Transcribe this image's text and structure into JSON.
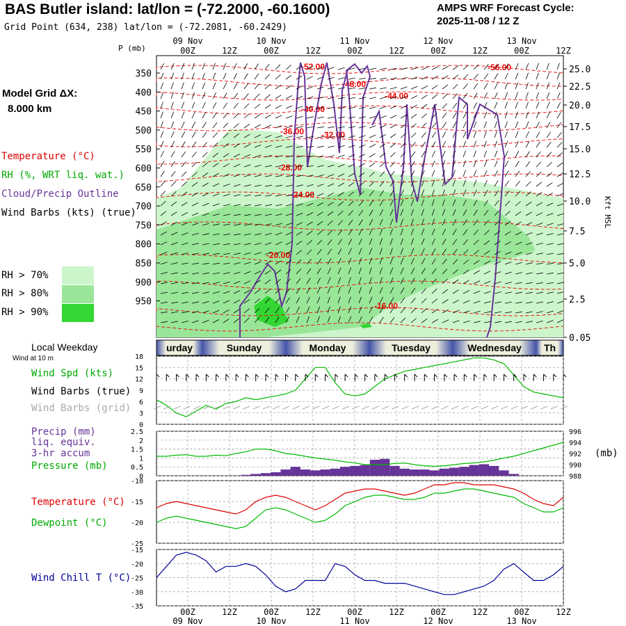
{
  "header": {
    "title": "BAS Butler island:  lat/lon = (-72.2000, -60.1600)",
    "grid_point": "Grid Point (634, 238) lat/lon = (-72.2081, -60.2429)",
    "cycle_line1": "AMPS WRF Forecast Cycle:",
    "cycle_line2": "2025-11-08 / 12  Z",
    "model_grid_label": "Model Grid ΔX:",
    "model_grid_value": "8.000 km"
  },
  "legend": {
    "temperature": "Temperature (°C)",
    "rh": "RH (%, WRT liq. wat.)",
    "cloud": "Cloud/Precip Outline",
    "wind_barbs": "Wind Barbs (kts) (true)",
    "rh70": "RH > 70%",
    "rh80": "RH > 80%",
    "rh90": "RH > 90%",
    "colors": {
      "rh70": "#ccf5cc",
      "rh80": "#99e699",
      "rh90": "#33d633",
      "temperature": "#ff0000",
      "cloud": "#663399",
      "wind": "#000000"
    }
  },
  "weekday": {
    "title": "Local Weekday",
    "days": [
      "urday",
      "Sunday",
      "Monday",
      "Tuesday",
      "Wednesday",
      "Th"
    ]
  },
  "panel_labels": {
    "wind_at": "Wind at 10 m",
    "wind_spd": "Wind Spd (kts)",
    "wind_barbs_true": "Wind Barbs (true)",
    "wind_barbs_grid": "Wind Barbs (grid)",
    "precip": "Precip (mm)",
    "liq": "liq. equiv.",
    "accum": "3-hr accum",
    "pressure": "Pressure (mb)",
    "pressure_unit": "(mb)",
    "temperature": "Temperature (°C)",
    "dewpoint": "Dewpoint (°C)",
    "wind_chill": "Wind Chill T (°C)",
    "p_axis": "P (mb)",
    "kft": "Kft MSL"
  },
  "chart_data": [
    {
      "type": "heatmap",
      "name": "upper-air cross-section",
      "x_ticks": [
        "00Z",
        "12Z",
        "00Z",
        "12Z",
        "00Z",
        "12Z",
        "00Z",
        "12Z",
        "00Z",
        "12Z"
      ],
      "date_labels": [
        "09 Nov",
        "10 Nov",
        "11 Nov",
        "12 Nov",
        "13 Nov"
      ],
      "pressure_ticks": [
        350,
        400,
        450,
        500,
        550,
        600,
        650,
        700,
        750,
        800,
        850,
        900,
        950
      ],
      "height_ticks": [
        "25.0",
        "22.5",
        "20.0",
        "17.5",
        "15.0",
        "12.5",
        "10.0",
        "7.5",
        "5.0",
        "2.5",
        "0.05"
      ],
      "temperature_labels": [
        "-52.00",
        "-48.00",
        "-44.00",
        "-40.00",
        "-36.00",
        "-32.00",
        "-28.00",
        "-24.00",
        "-20.00",
        "-16.00",
        "-56.00"
      ]
    },
    {
      "type": "line",
      "name": "wind speed",
      "y_ticks": [
        0,
        3,
        6,
        9,
        12,
        15,
        18
      ],
      "ylim": [
        0,
        18
      ],
      "series": [
        {
          "name": "Wind Spd (kts)",
          "color": "#00bb00",
          "values": [
            6.5,
            5,
            3,
            2,
            3.5,
            5,
            4,
            5.5,
            6,
            7,
            6.5,
            7,
            7.5,
            8,
            9,
            12,
            15,
            15,
            11,
            8,
            7.5,
            8,
            10,
            12,
            13,
            14,
            14.5,
            15,
            15.5,
            16,
            16.5,
            17,
            17.5,
            17.5,
            17,
            16,
            13,
            10,
            8.5,
            8,
            7.5,
            7
          ]
        }
      ]
    },
    {
      "type": "bar",
      "name": "precip and pressure",
      "precip_ticks": [
        "0",
        "0.5",
        "1",
        "1.5",
        "2",
        "2.5"
      ],
      "pressure_ticks": [
        988,
        990,
        992,
        994,
        996
      ],
      "precip": [
        0,
        0,
        0,
        0,
        0,
        0,
        0,
        0,
        0,
        0.05,
        0.1,
        0.15,
        0.2,
        0.35,
        0.5,
        0.35,
        0.3,
        0.35,
        0.4,
        0.5,
        0.55,
        0.6,
        0.9,
        0.95,
        0.55,
        0.4,
        0.35,
        0.35,
        0.3,
        0.4,
        0.45,
        0.5,
        0.6,
        0.65,
        0.55,
        0.3,
        0.1,
        0,
        0,
        0,
        0,
        0
      ],
      "pressure": [
        991.5,
        991.5,
        991.7,
        991.8,
        991.5,
        991.5,
        991.7,
        991.6,
        992,
        992.3,
        992.8,
        992.8,
        992.5,
        992,
        991.8,
        991.5,
        991.2,
        991,
        990.8,
        990.5,
        990.3,
        990,
        990,
        990,
        990.2,
        990.3,
        990,
        989.8,
        989.7,
        989.8,
        990,
        990.2,
        990.3,
        990.5,
        990.8,
        991.2,
        991.5,
        992,
        992.5,
        993,
        993.5,
        994
      ]
    },
    {
      "type": "line",
      "name": "temperature and dewpoint",
      "y_ticks": [
        -10,
        -15,
        -20,
        -25
      ],
      "ylim": [
        -25,
        -10
      ],
      "series": [
        {
          "name": "Temperature (°C)",
          "color": "#dd0000",
          "values": [
            -16.5,
            -15.5,
            -15,
            -15.5,
            -16,
            -16.5,
            -17,
            -17.5,
            -18,
            -17,
            -15,
            -14,
            -13.5,
            -14,
            -15,
            -16,
            -17,
            -16,
            -14.5,
            -13,
            -12.5,
            -12,
            -12,
            -12.5,
            -13,
            -13.5,
            -13,
            -12,
            -11,
            -11,
            -10.5,
            -10.5,
            -11,
            -11,
            -11,
            -11.5,
            -12,
            -13,
            -14.5,
            -15.5,
            -16,
            -14
          ]
        },
        {
          "name": "Dewpoint (°C)",
          "color": "#00bb00",
          "values": [
            -20,
            -19,
            -18.5,
            -19,
            -19.5,
            -20,
            -20.5,
            -21,
            -21.5,
            -21,
            -19,
            -17,
            -16.5,
            -17,
            -18,
            -19,
            -20,
            -19.5,
            -18,
            -16,
            -15,
            -14,
            -13.5,
            -13.5,
            -14,
            -14.5,
            -14.5,
            -14,
            -13,
            -13,
            -12.5,
            -12,
            -12,
            -12.5,
            -13,
            -13.5,
            -14,
            -15.5,
            -16.5,
            -17.5,
            -17.5,
            -16.5
          ]
        }
      ]
    },
    {
      "type": "line",
      "name": "wind chill",
      "y_ticks": [
        -15,
        -20,
        -25,
        -30,
        -35
      ],
      "ylim": [
        -35,
        -15
      ],
      "series": [
        {
          "name": "Wind Chill T (°C)",
          "color": "#000099",
          "values": [
            -25,
            -21,
            -17,
            -16,
            -17,
            -19,
            -23,
            -21,
            -21,
            -20,
            -21,
            -24,
            -28,
            -30,
            -29,
            -26,
            -26,
            -26,
            -20,
            -21,
            -24,
            -26,
            -26,
            -27,
            -27,
            -27,
            -28,
            -29,
            -30,
            -31,
            -31,
            -30,
            -29,
            -28,
            -26,
            -22,
            -20,
            -23,
            -26,
            -26,
            -24,
            -21
          ]
        }
      ]
    }
  ]
}
